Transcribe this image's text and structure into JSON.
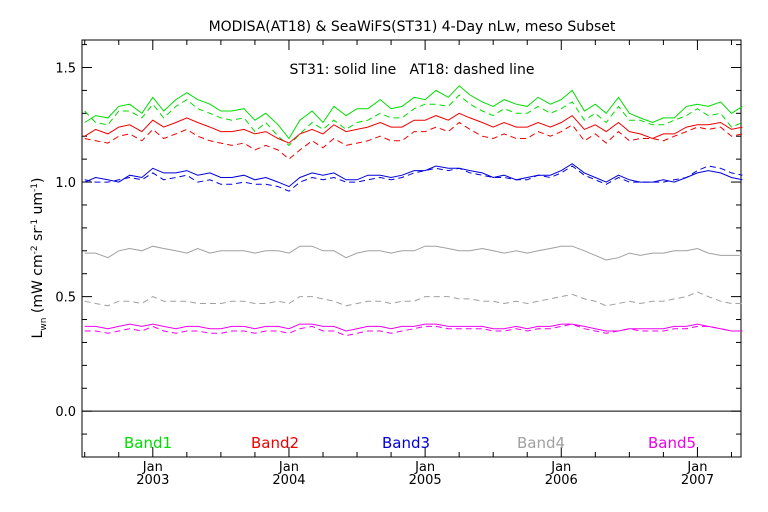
{
  "chart_data": {
    "type": "line",
    "title": "MODISA(AT18) & SeaWiFS(ST31) 4-Day nLw, meso Subset",
    "annotation": "ST31: solid line   AT18: dashed line",
    "ylabel": {
      "base": "L",
      "sub": "wn",
      "units_open": " (mW cm",
      "exp1": "-2",
      "mid1": " sr",
      "exp2": "-1",
      "mid2": " um",
      "exp3": "-1",
      "units_close": ")"
    },
    "ylim": [
      -0.2,
      1.62
    ],
    "xlim": [
      2002.48,
      2007.32
    ],
    "yticks": [
      0.0,
      0.5,
      1.0,
      1.5
    ],
    "ytick_labels": [
      "0.0",
      "0.5",
      "1.0",
      "1.5"
    ],
    "xticks": [
      2003.0,
      2004.0,
      2005.0,
      2006.0,
      2007.0
    ],
    "xtick_month_labels": [
      "Jan",
      "Jan",
      "Jan",
      "Jan",
      "Jan"
    ],
    "xtick_year_labels": [
      "2003",
      "2004",
      "2005",
      "2006",
      "2007"
    ],
    "zero_line": 0.0,
    "line_styles": {
      "solid": "ST31",
      "dashed": "AT18"
    },
    "x": [
      2002.5,
      2002.58,
      2002.67,
      2002.75,
      2002.83,
      2002.92,
      2003.0,
      2003.08,
      2003.17,
      2003.25,
      2003.33,
      2003.42,
      2003.5,
      2003.58,
      2003.67,
      2003.75,
      2003.83,
      2003.92,
      2004.0,
      2004.08,
      2004.17,
      2004.25,
      2004.33,
      2004.42,
      2004.5,
      2004.58,
      2004.67,
      2004.75,
      2004.83,
      2004.92,
      2005.0,
      2005.08,
      2005.17,
      2005.25,
      2005.33,
      2005.42,
      2005.5,
      2005.58,
      2005.67,
      2005.75,
      2005.83,
      2005.92,
      2006.0,
      2006.08,
      2006.17,
      2006.25,
      2006.33,
      2006.42,
      2006.5,
      2006.58,
      2006.67,
      2006.75,
      2006.83,
      2006.92,
      2007.0,
      2007.08,
      2007.17,
      2007.25,
      2007.33
    ],
    "series": [
      {
        "name": "Band1",
        "color": "#00dd00",
        "st31": [
          1.26,
          1.29,
          1.28,
          1.33,
          1.34,
          1.3,
          1.37,
          1.31,
          1.36,
          1.39,
          1.36,
          1.34,
          1.31,
          1.31,
          1.32,
          1.27,
          1.3,
          1.25,
          1.19,
          1.27,
          1.31,
          1.26,
          1.33,
          1.29,
          1.32,
          1.32,
          1.36,
          1.32,
          1.33,
          1.37,
          1.36,
          1.4,
          1.37,
          1.42,
          1.38,
          1.35,
          1.33,
          1.36,
          1.34,
          1.33,
          1.37,
          1.34,
          1.36,
          1.4,
          1.31,
          1.34,
          1.3,
          1.37,
          1.3,
          1.28,
          1.26,
          1.28,
          1.28,
          1.33,
          1.34,
          1.33,
          1.35,
          1.3,
          1.33
        ],
        "at18": [
          1.31,
          1.26,
          1.25,
          1.31,
          1.31,
          1.28,
          1.34,
          1.28,
          1.33,
          1.36,
          1.32,
          1.3,
          1.28,
          1.27,
          1.28,
          1.22,
          1.26,
          1.2,
          1.16,
          1.21,
          1.26,
          1.23,
          1.27,
          1.23,
          1.26,
          1.27,
          1.3,
          1.28,
          1.28,
          1.32,
          1.34,
          1.34,
          1.33,
          1.38,
          1.34,
          1.31,
          1.29,
          1.32,
          1.3,
          1.3,
          1.33,
          1.3,
          1.32,
          1.35,
          1.27,
          1.3,
          1.26,
          1.33,
          1.27,
          1.27,
          1.25,
          1.25,
          1.27,
          1.29,
          1.32,
          1.29,
          1.3,
          1.24,
          1.26
        ]
      },
      {
        "name": "Band2",
        "color": "#ee0000",
        "st31": [
          1.2,
          1.23,
          1.21,
          1.24,
          1.25,
          1.22,
          1.27,
          1.24,
          1.26,
          1.28,
          1.26,
          1.24,
          1.22,
          1.22,
          1.23,
          1.21,
          1.22,
          1.19,
          1.17,
          1.21,
          1.23,
          1.21,
          1.25,
          1.22,
          1.23,
          1.24,
          1.26,
          1.24,
          1.24,
          1.27,
          1.27,
          1.29,
          1.27,
          1.3,
          1.28,
          1.26,
          1.24,
          1.26,
          1.24,
          1.24,
          1.26,
          1.24,
          1.26,
          1.29,
          1.23,
          1.25,
          1.22,
          1.26,
          1.22,
          1.21,
          1.19,
          1.21,
          1.21,
          1.24,
          1.25,
          1.25,
          1.26,
          1.23,
          1.24
        ],
        "at18": [
          1.19,
          1.18,
          1.17,
          1.2,
          1.21,
          1.18,
          1.23,
          1.19,
          1.21,
          1.23,
          1.2,
          1.18,
          1.17,
          1.16,
          1.17,
          1.14,
          1.16,
          1.14,
          1.1,
          1.14,
          1.18,
          1.15,
          1.19,
          1.16,
          1.17,
          1.18,
          1.2,
          1.18,
          1.18,
          1.22,
          1.22,
          1.24,
          1.22,
          1.26,
          1.23,
          1.2,
          1.19,
          1.21,
          1.19,
          1.19,
          1.22,
          1.2,
          1.22,
          1.25,
          1.18,
          1.21,
          1.17,
          1.22,
          1.18,
          1.19,
          1.19,
          1.18,
          1.2,
          1.22,
          1.24,
          1.23,
          1.24,
          1.2,
          1.21
        ]
      },
      {
        "name": "Band3",
        "color": "#0000dd",
        "st31": [
          1.0,
          1.02,
          1.01,
          1.0,
          1.03,
          1.02,
          1.06,
          1.04,
          1.04,
          1.05,
          1.03,
          1.04,
          1.02,
          1.02,
          1.03,
          1.01,
          1.02,
          1.0,
          0.98,
          1.02,
          1.04,
          1.03,
          1.04,
          1.01,
          1.01,
          1.03,
          1.03,
          1.02,
          1.03,
          1.05,
          1.05,
          1.07,
          1.06,
          1.06,
          1.05,
          1.04,
          1.02,
          1.03,
          1.01,
          1.02,
          1.03,
          1.03,
          1.05,
          1.08,
          1.04,
          1.02,
          1.0,
          1.03,
          1.01,
          1.0,
          1.0,
          1.01,
          1.0,
          1.02,
          1.04,
          1.05,
          1.04,
          1.02,
          1.01
        ],
        "at18": [
          1.01,
          1.0,
          1.0,
          1.01,
          1.02,
          1.01,
          1.04,
          1.01,
          1.02,
          1.03,
          1.0,
          1.01,
          0.99,
          0.99,
          1.0,
          0.99,
          0.99,
          0.98,
          0.96,
          1.0,
          1.02,
          1.01,
          1.02,
          1.0,
          1.0,
          1.01,
          1.02,
          1.01,
          1.02,
          1.04,
          1.05,
          1.06,
          1.05,
          1.06,
          1.04,
          1.03,
          1.02,
          1.02,
          1.01,
          1.01,
          1.03,
          1.02,
          1.04,
          1.07,
          1.03,
          1.01,
          0.99,
          1.02,
          1.0,
          1.0,
          1.0,
          1.0,
          1.01,
          1.02,
          1.05,
          1.07,
          1.06,
          1.04,
          1.03
        ]
      },
      {
        "name": "Band4",
        "color": "#a0a0a0",
        "st31": [
          0.69,
          0.69,
          0.67,
          0.7,
          0.71,
          0.7,
          0.72,
          0.71,
          0.7,
          0.69,
          0.71,
          0.69,
          0.7,
          0.7,
          0.7,
          0.69,
          0.7,
          0.7,
          0.69,
          0.72,
          0.72,
          0.7,
          0.7,
          0.67,
          0.69,
          0.7,
          0.7,
          0.69,
          0.7,
          0.7,
          0.72,
          0.72,
          0.71,
          0.7,
          0.7,
          0.71,
          0.7,
          0.69,
          0.7,
          0.69,
          0.7,
          0.71,
          0.72,
          0.72,
          0.7,
          0.68,
          0.66,
          0.67,
          0.69,
          0.68,
          0.69,
          0.69,
          0.7,
          0.7,
          0.71,
          0.69,
          0.68,
          0.68,
          0.68
        ],
        "at18": [
          0.48,
          0.47,
          0.46,
          0.48,
          0.48,
          0.47,
          0.5,
          0.48,
          0.48,
          0.48,
          0.47,
          0.47,
          0.47,
          0.48,
          0.48,
          0.47,
          0.47,
          0.48,
          0.47,
          0.5,
          0.5,
          0.49,
          0.48,
          0.46,
          0.47,
          0.48,
          0.48,
          0.47,
          0.48,
          0.48,
          0.5,
          0.5,
          0.5,
          0.49,
          0.49,
          0.48,
          0.48,
          0.47,
          0.48,
          0.47,
          0.48,
          0.49,
          0.5,
          0.51,
          0.49,
          0.48,
          0.46,
          0.47,
          0.48,
          0.47,
          0.48,
          0.48,
          0.49,
          0.5,
          0.52,
          0.5,
          0.48,
          0.47,
          0.47
        ]
      },
      {
        "name": "Band5",
        "color": "#ee00ee",
        "st31": [
          0.37,
          0.37,
          0.36,
          0.37,
          0.38,
          0.37,
          0.38,
          0.37,
          0.36,
          0.37,
          0.37,
          0.36,
          0.36,
          0.37,
          0.37,
          0.36,
          0.37,
          0.37,
          0.36,
          0.38,
          0.38,
          0.37,
          0.37,
          0.35,
          0.36,
          0.37,
          0.37,
          0.36,
          0.37,
          0.37,
          0.38,
          0.38,
          0.37,
          0.37,
          0.37,
          0.37,
          0.36,
          0.36,
          0.37,
          0.36,
          0.37,
          0.37,
          0.38,
          0.38,
          0.37,
          0.36,
          0.35,
          0.35,
          0.36,
          0.36,
          0.36,
          0.36,
          0.37,
          0.37,
          0.38,
          0.37,
          0.36,
          0.35,
          0.35
        ],
        "at18": [
          0.35,
          0.35,
          0.34,
          0.35,
          0.36,
          0.35,
          0.37,
          0.35,
          0.34,
          0.35,
          0.35,
          0.34,
          0.34,
          0.35,
          0.35,
          0.34,
          0.35,
          0.35,
          0.34,
          0.36,
          0.37,
          0.35,
          0.35,
          0.33,
          0.34,
          0.35,
          0.35,
          0.34,
          0.35,
          0.36,
          0.37,
          0.37,
          0.36,
          0.36,
          0.36,
          0.36,
          0.35,
          0.35,
          0.36,
          0.35,
          0.36,
          0.36,
          0.37,
          0.38,
          0.36,
          0.35,
          0.34,
          0.35,
          0.36,
          0.35,
          0.35,
          0.35,
          0.36,
          0.36,
          0.37,
          0.37,
          0.36,
          0.35,
          0.35
        ]
      }
    ]
  }
}
